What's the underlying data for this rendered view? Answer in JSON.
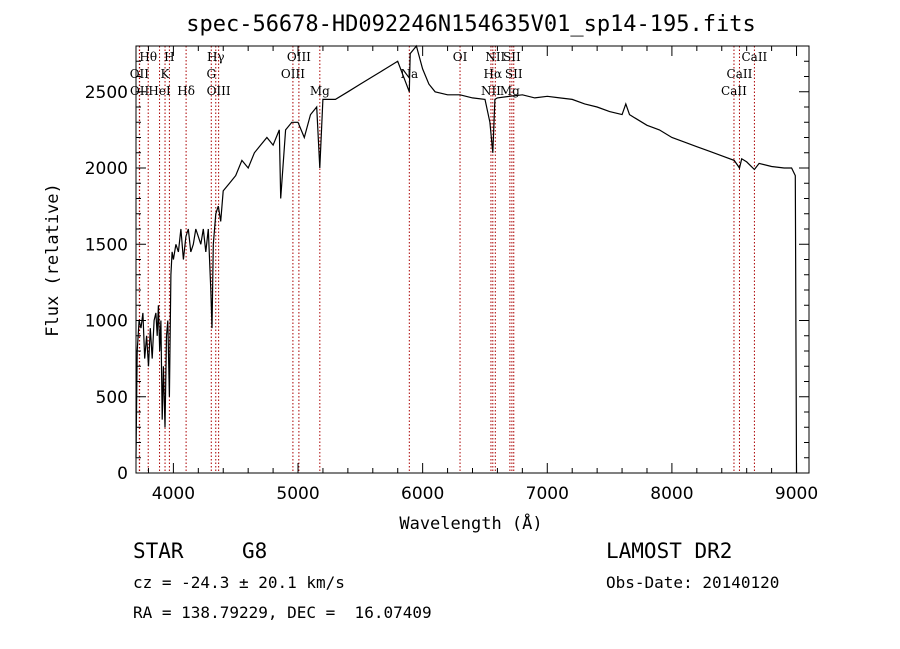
{
  "chart_data": {
    "type": "line",
    "title": "spec-56678-HD092246N154635V01_sp14-195.fits",
    "xlabel": "Wavelength (Å)",
    "ylabel": "Flux (relative)",
    "xlim": [
      3700,
      9100
    ],
    "ylim": [
      0,
      2800
    ],
    "xticks": [
      4000,
      5000,
      6000,
      7000,
      8000,
      9000
    ],
    "yticks": [
      0,
      500,
      1000,
      1500,
      2000,
      2500
    ],
    "grid": false,
    "line_color": "#000000",
    "marker_color": "#aa0000",
    "series": [
      {
        "x": [
          3700,
          3710,
          3725,
          3740,
          3755,
          3770,
          3785,
          3800,
          3815,
          3830,
          3845,
          3860,
          3870,
          3880,
          3890,
          3900,
          3910,
          3920,
          3933,
          3945,
          3955,
          3968,
          3980,
          3990,
          4000,
          4020,
          4040,
          4060,
          4080,
          4100,
          4120,
          4140,
          4160,
          4180,
          4200,
          4220,
          4240,
          4260,
          4280,
          4300,
          4310,
          4320,
          4340,
          4360,
          4380,
          4400,
          4450,
          4500,
          4550,
          4600,
          4650,
          4700,
          4750,
          4800,
          4850,
          4861,
          4900,
          4950,
          5000,
          5050,
          5100,
          5150,
          5175,
          5200,
          5300,
          5400,
          5500,
          5600,
          5700,
          5800,
          5893,
          5900,
          5950,
          6000,
          6050,
          6100,
          6200,
          6300,
          6400,
          6500,
          6540,
          6563,
          6580,
          6600,
          6700,
          6800,
          6900,
          7000,
          7100,
          7200,
          7300,
          7400,
          7500,
          7600,
          7630,
          7660,
          7700,
          7800,
          7900,
          8000,
          8100,
          8200,
          8300,
          8400,
          8500,
          8542,
          8560,
          8600,
          8662,
          8700,
          8800,
          8900,
          8960,
          8990,
          9000
        ],
        "y": [
          100,
          800,
          1000,
          950,
          1050,
          750,
          900,
          700,
          950,
          750,
          1000,
          1050,
          900,
          1100,
          800,
          1000,
          350,
          700,
          300,
          900,
          1000,
          500,
          1300,
          1450,
          1400,
          1500,
          1450,
          1600,
          1400,
          1550,
          1600,
          1450,
          1500,
          1600,
          1550,
          1500,
          1600,
          1450,
          1600,
          1200,
          950,
          1500,
          1700,
          1750,
          1650,
          1850,
          1900,
          1950,
          2050,
          2000,
          2100,
          2150,
          2200,
          2150,
          2250,
          1800,
          2250,
          2300,
          2300,
          2200,
          2350,
          2400,
          2000,
          2450,
          2450,
          2500,
          2550,
          2600,
          2650,
          2700,
          2500,
          2750,
          2800,
          2650,
          2550,
          2500,
          2480,
          2480,
          2460,
          2450,
          2300,
          2100,
          2450,
          2460,
          2470,
          2480,
          2460,
          2470,
          2460,
          2450,
          2420,
          2400,
          2370,
          2350,
          2420,
          2350,
          2330,
          2280,
          2250,
          2200,
          2170,
          2140,
          2110,
          2080,
          2050,
          2000,
          2060,
          2040,
          1990,
          2030,
          2010,
          2000,
          2000,
          1950,
          0
        ]
      }
    ],
    "line_markers": [
      {
        "name": "Hθ",
        "wavelength": 3798,
        "row": 0
      },
      {
        "name": "H",
        "wavelength": 3968,
        "row": 0
      },
      {
        "name": "Hγ",
        "wavelength": 4340,
        "row": 0
      },
      {
        "name": "OIII",
        "wavelength": 5007,
        "row": 0
      },
      {
        "name": "OI",
        "wavelength": 6300,
        "row": 0
      },
      {
        "name": "NII",
        "wavelength": 6583,
        "row": 0
      },
      {
        "name": "SII",
        "wavelength": 6716,
        "row": 0
      },
      {
        "name": "CaII",
        "wavelength": 8662,
        "row": 0
      },
      {
        "name": "OII",
        "wavelength": 3727,
        "row": 1
      },
      {
        "name": "K",
        "wavelength": 3933,
        "row": 1
      },
      {
        "name": "G",
        "wavelength": 4304,
        "row": 1
      },
      {
        "name": "OIII",
        "wavelength": 4959,
        "row": 1
      },
      {
        "name": "Na",
        "wavelength": 5893,
        "row": 1
      },
      {
        "name": "Hα",
        "wavelength": 6563,
        "row": 1
      },
      {
        "name": "SII",
        "wavelength": 6731,
        "row": 1
      },
      {
        "name": "CaII",
        "wavelength": 8542,
        "row": 1
      },
      {
        "name": "OII",
        "wavelength": 3729,
        "row": 2
      },
      {
        "name": "HeI",
        "wavelength": 3889,
        "row": 2
      },
      {
        "name": "Hδ",
        "wavelength": 4102,
        "row": 2
      },
      {
        "name": "OIII",
        "wavelength": 4363,
        "row": 2
      },
      {
        "name": "Mg",
        "wavelength": 5175,
        "row": 2
      },
      {
        "name": "NII",
        "wavelength": 6548,
        "row": 2
      },
      {
        "name": "Mg",
        "wavelength": 6700,
        "row": 2
      },
      {
        "name": "CaII",
        "wavelength": 8498,
        "row": 2
      }
    ]
  },
  "info": {
    "object_class": "STAR",
    "subclass": "G8",
    "survey": "LAMOST DR2",
    "redshift": "cz = -24.3 ± 20.1 km/s",
    "obs_date": "Obs-Date: 20140120",
    "coords": "RA = 138.79229, DEC =  16.07409"
  }
}
